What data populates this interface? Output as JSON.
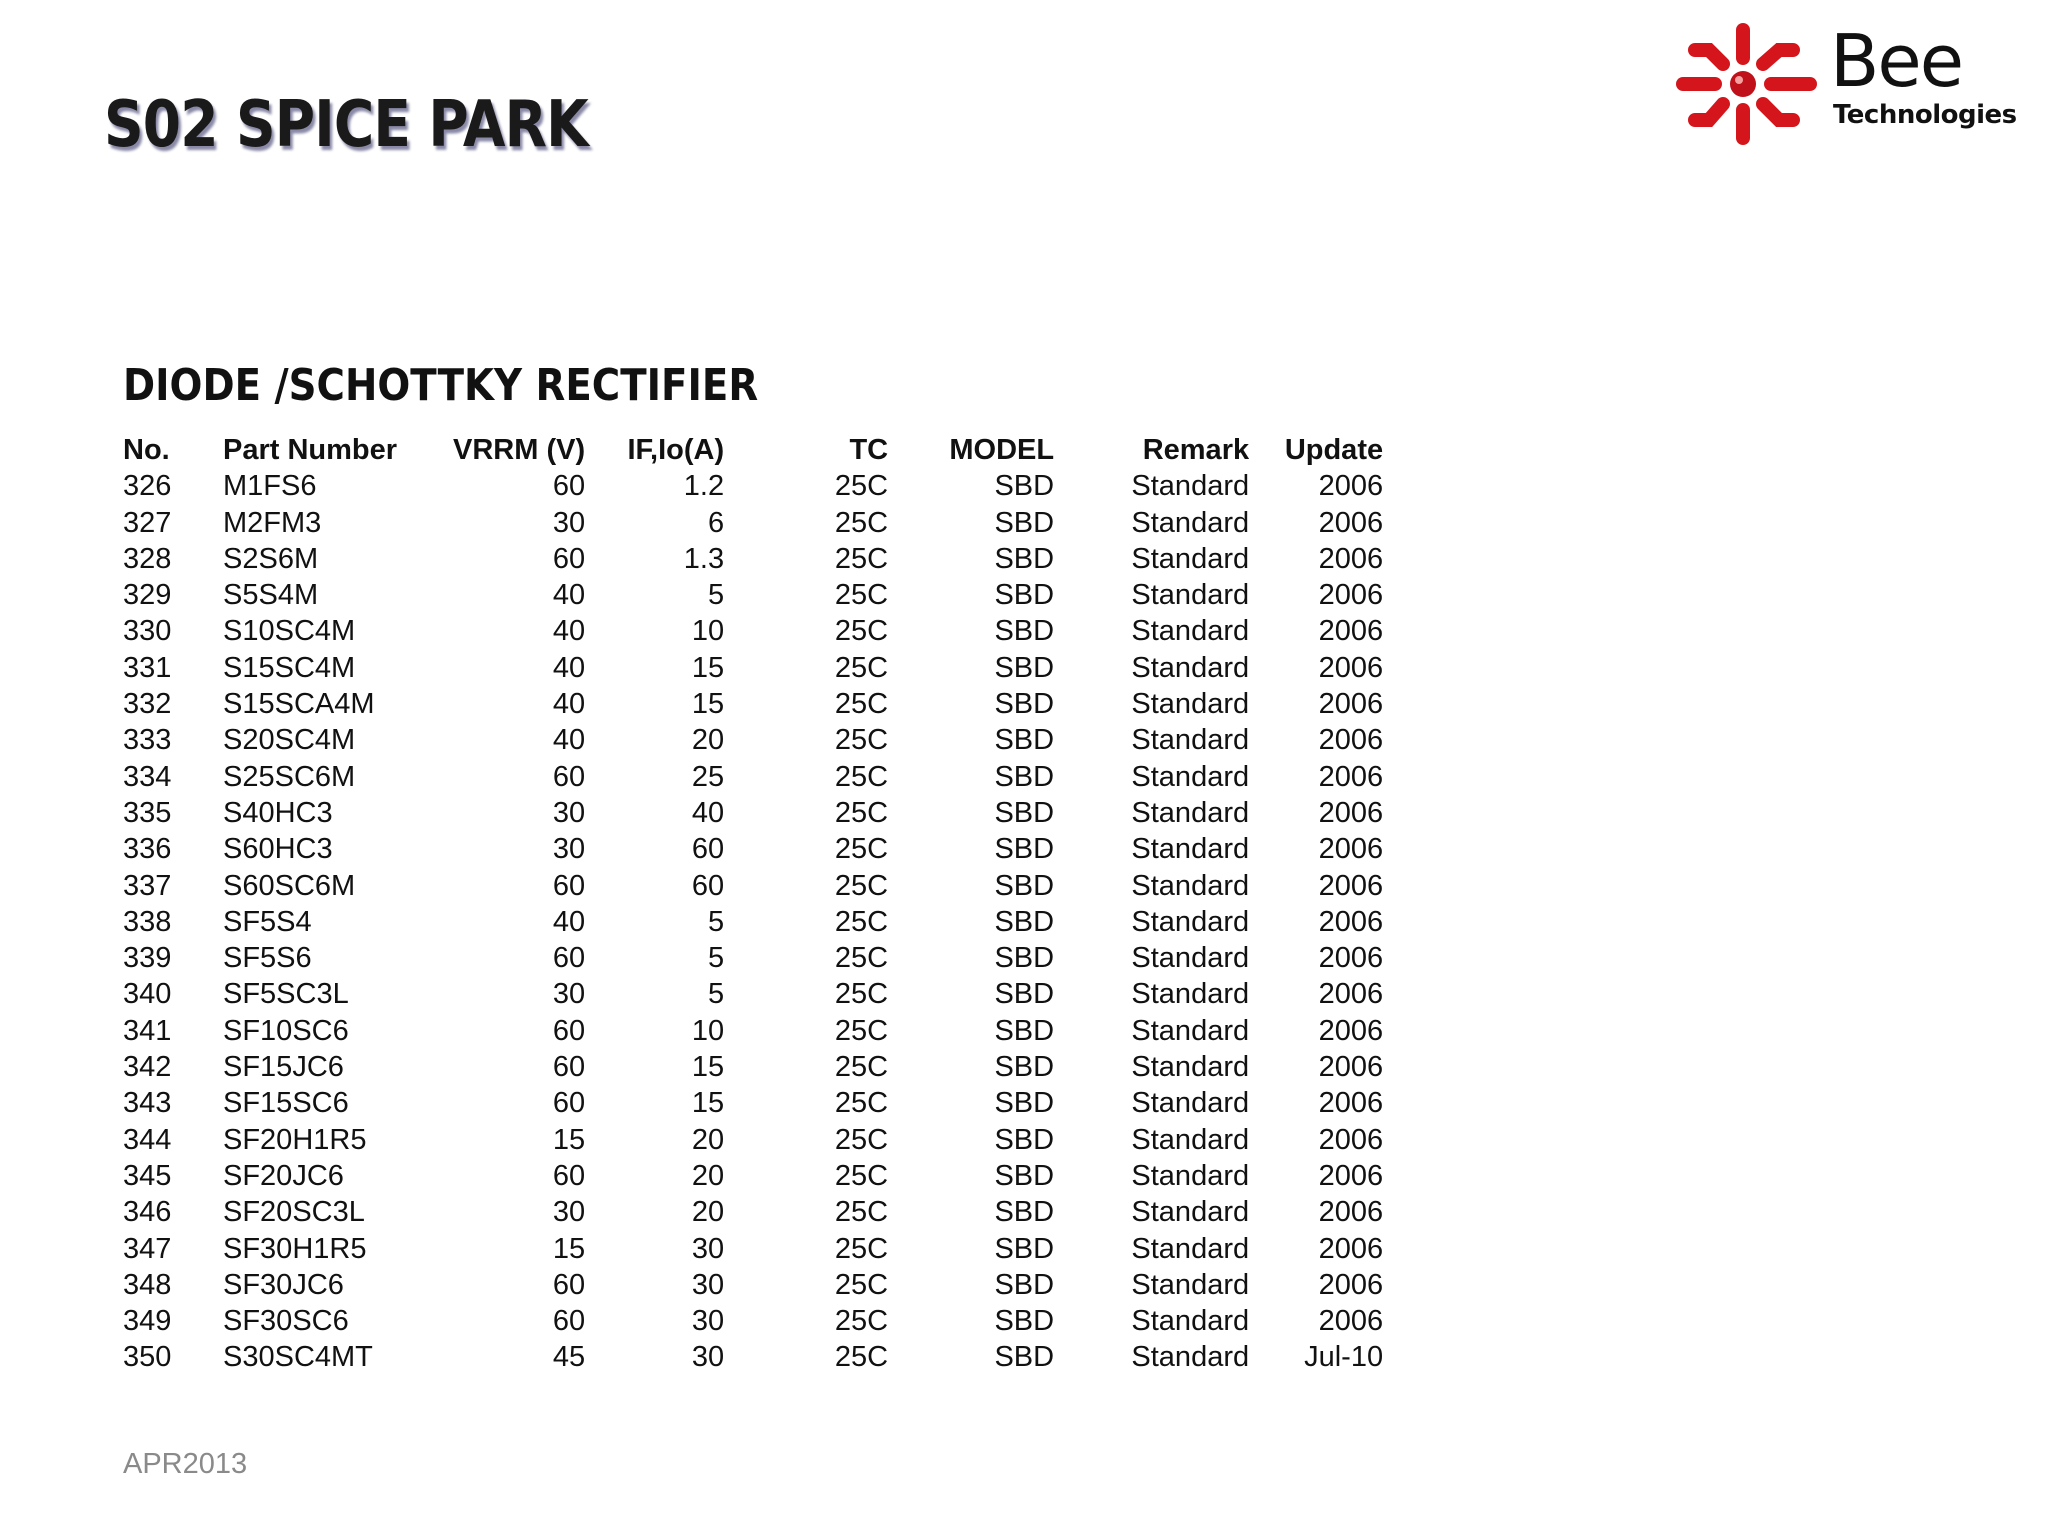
{
  "title": "S02 SPICE PARK",
  "logo": {
    "name": "Bee",
    "sub": "Technologies",
    "brand_color": "#d4161c"
  },
  "section_title": "DIODE /SCHOTTKY RECTIFIER",
  "table": {
    "headers": [
      "No.",
      "Part Number",
      "VRRM (V)",
      "IF,Io(A)",
      "TC",
      "MODEL",
      "Remark",
      "Update"
    ],
    "rows": [
      [
        "326",
        "M1FS6",
        "60",
        "1.2",
        "25C",
        "SBD",
        "Standard",
        "2006"
      ],
      [
        "327",
        "M2FM3",
        "30",
        "6",
        "25C",
        "SBD",
        "Standard",
        "2006"
      ],
      [
        "328",
        "S2S6M",
        "60",
        "1.3",
        "25C",
        "SBD",
        "Standard",
        "2006"
      ],
      [
        "329",
        "S5S4M",
        "40",
        "5",
        "25C",
        "SBD",
        "Standard",
        "2006"
      ],
      [
        "330",
        "S10SC4M",
        "40",
        "10",
        "25C",
        "SBD",
        "Standard",
        "2006"
      ],
      [
        "331",
        "S15SC4M",
        "40",
        "15",
        "25C",
        "SBD",
        "Standard",
        "2006"
      ],
      [
        "332",
        "S15SCA4M",
        "40",
        "15",
        "25C",
        "SBD",
        "Standard",
        "2006"
      ],
      [
        "333",
        "S20SC4M",
        "40",
        "20",
        "25C",
        "SBD",
        "Standard",
        "2006"
      ],
      [
        "334",
        "S25SC6M",
        "60",
        "25",
        "25C",
        "SBD",
        "Standard",
        "2006"
      ],
      [
        "335",
        "S40HC3",
        "30",
        "40",
        "25C",
        "SBD",
        "Standard",
        "2006"
      ],
      [
        "336",
        "S60HC3",
        "30",
        "60",
        "25C",
        "SBD",
        "Standard",
        "2006"
      ],
      [
        "337",
        "S60SC6M",
        "60",
        "60",
        "25C",
        "SBD",
        "Standard",
        "2006"
      ],
      [
        "338",
        "SF5S4",
        "40",
        "5",
        "25C",
        "SBD",
        "Standard",
        "2006"
      ],
      [
        "339",
        "SF5S6",
        "60",
        "5",
        "25C",
        "SBD",
        "Standard",
        "2006"
      ],
      [
        "340",
        "SF5SC3L",
        "30",
        "5",
        "25C",
        "SBD",
        "Standard",
        "2006"
      ],
      [
        "341",
        "SF10SC6",
        "60",
        "10",
        "25C",
        "SBD",
        "Standard",
        "2006"
      ],
      [
        "342",
        "SF15JC6",
        "60",
        "15",
        "25C",
        "SBD",
        "Standard",
        "2006"
      ],
      [
        "343",
        "SF15SC6",
        "60",
        "15",
        "25C",
        "SBD",
        "Standard",
        "2006"
      ],
      [
        "344",
        "SF20H1R5",
        "15",
        "20",
        "25C",
        "SBD",
        "Standard",
        "2006"
      ],
      [
        "345",
        "SF20JC6",
        "60",
        "20",
        "25C",
        "SBD",
        "Standard",
        "2006"
      ],
      [
        "346",
        "SF20SC3L",
        "30",
        "20",
        "25C",
        "SBD",
        "Standard",
        "2006"
      ],
      [
        "347",
        "SF30H1R5",
        "15",
        "30",
        "25C",
        "SBD",
        "Standard",
        "2006"
      ],
      [
        "348",
        "SF30JC6",
        "60",
        "30",
        "25C",
        "SBD",
        "Standard",
        "2006"
      ],
      [
        "349",
        "SF30SC6",
        "60",
        "30",
        "25C",
        "SBD",
        "Standard",
        "2006"
      ],
      [
        "350",
        "S30SC4MT",
        "45",
        "30",
        "25C",
        "SBD",
        "Standard",
        "Jul-10"
      ]
    ]
  },
  "footer": "APR2013"
}
